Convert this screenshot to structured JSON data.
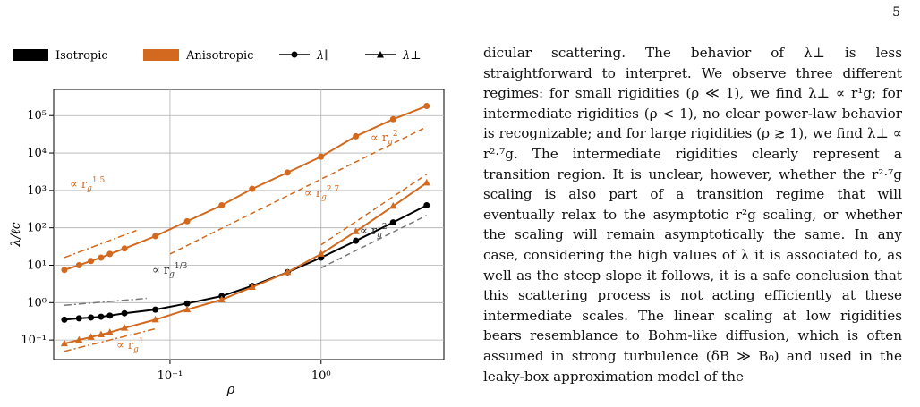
{
  "page": {
    "number": "5"
  },
  "legend": {
    "items": [
      {
        "label": "Isotropic",
        "kind": "patch",
        "color": "#000000"
      },
      {
        "label": "Anisotropic",
        "kind": "patch",
        "color": "#d2691e"
      },
      {
        "label": "λ∥",
        "kind": "circle-line",
        "color": "#000000"
      },
      {
        "label": "λ⊥",
        "kind": "triangle-line",
        "color": "#000000"
      }
    ]
  },
  "colors": {
    "isotropic": "#000000",
    "anisotropic": "#d2691e",
    "ref_gray": "#777777",
    "grid": "#b0b0b0"
  },
  "chart_data": {
    "type": "line",
    "xlabel": "ρ",
    "ylabel": "λ/ℓc",
    "xscale": "log",
    "yscale": "log",
    "xlim": [
      0.017,
      6.5
    ],
    "ylim": [
      0.03,
      500000
    ],
    "grid": true,
    "legend_position": "top, above plot",
    "x_ticks": [
      {
        "value": 0.1,
        "label": "10⁻¹"
      },
      {
        "value": 1,
        "label": "10⁰"
      }
    ],
    "y_ticks": [
      {
        "value": 0.1,
        "label": "10⁻¹"
      },
      {
        "value": 1,
        "label": "10⁰"
      },
      {
        "value": 10,
        "label": "10¹"
      },
      {
        "value": 100,
        "label": "10²"
      },
      {
        "value": 1000,
        "label": "10³"
      },
      {
        "value": 10000,
        "label": "10⁴"
      },
      {
        "value": 100000,
        "label": "10⁵"
      }
    ],
    "series": [
      {
        "name": "Anisotropic λ∥",
        "color": "#d2691e",
        "marker": "circle",
        "x": [
          0.02,
          0.025,
          0.03,
          0.035,
          0.04,
          0.05,
          0.08,
          0.13,
          0.22,
          0.35,
          0.6,
          1.0,
          1.7,
          3.0,
          5.0
        ],
        "y": [
          7.5,
          10,
          13,
          16,
          20,
          28,
          60,
          150,
          400,
          1100,
          3000,
          8000,
          28000,
          80000,
          180000
        ]
      },
      {
        "name": "Isotropic λ⊥",
        "color": "#000000",
        "marker": "circle",
        "x": [
          0.02,
          0.025,
          0.03,
          0.035,
          0.04,
          0.05,
          0.08,
          0.13,
          0.22,
          0.35,
          0.6,
          1.0,
          1.7,
          3.0,
          5.0
        ],
        "y": [
          0.35,
          0.38,
          0.4,
          0.42,
          0.45,
          0.52,
          0.65,
          0.95,
          1.5,
          2.8,
          6.5,
          16,
          45,
          140,
          400
        ]
      },
      {
        "name": "Anisotropic λ⊥",
        "color": "#d2691e",
        "marker": "triangle",
        "x": [
          0.02,
          0.025,
          0.03,
          0.035,
          0.04,
          0.05,
          0.08,
          0.13,
          0.22,
          0.35,
          0.6,
          1.0,
          1.7,
          3.0,
          5.0
        ],
        "y": [
          0.08,
          0.1,
          0.12,
          0.14,
          0.16,
          0.21,
          0.35,
          0.65,
          1.2,
          2.6,
          6.5,
          20,
          80,
          380,
          1600
        ]
      }
    ],
    "reference_lines": [
      {
        "label": "∝ r_g^1.5",
        "color": "#d2691e",
        "style": "dashdot",
        "x": [
          0.02,
          0.06
        ],
        "y": [
          16,
          85
        ]
      },
      {
        "label": "∝ r_g^2",
        "color": "#d2691e",
        "style": "dashed",
        "x": [
          0.1,
          5.0
        ],
        "y": [
          20,
          50000
        ]
      },
      {
        "label": "∝ r_g^1/3",
        "color": "#777777",
        "style": "dashdot",
        "x": [
          0.02,
          0.07
        ],
        "y": [
          0.85,
          1.3
        ]
      },
      {
        "label": "∝ r_g^2.7",
        "color": "#d2691e",
        "style": "dashed",
        "x": [
          1.0,
          5.0
        ],
        "y": [
          35,
          2700
        ]
      },
      {
        "label": "∝ r_g^2",
        "color": "#777777",
        "style": "dashed",
        "x": [
          1.0,
          5.0
        ],
        "y": [
          8.5,
          215
        ]
      },
      {
        "label": "∝ r_g^1",
        "color": "#d2691e",
        "style": "dashdot",
        "x": [
          0.02,
          0.08
        ],
        "y": [
          0.05,
          0.2
        ]
      }
    ],
    "annotations": [
      {
        "base": "∝ r",
        "sub": "g",
        "sup": "1.5",
        "color": "#d2691e"
      },
      {
        "base": "∝ r",
        "sub": "g",
        "sup": "2",
        "color": "#d2691e"
      },
      {
        "base": "∝ r",
        "sub": "g",
        "sup": "2.7",
        "color": "#d2691e"
      },
      {
        "base": "∝ r",
        "sub": "g",
        "sup": "2",
        "color": "#333333"
      },
      {
        "base": "∝ r",
        "sub": "g",
        "sup": "1/3",
        "color": "#333333"
      },
      {
        "base": "∝ r",
        "sub": "g",
        "sup": "1",
        "color": "#d2691e"
      }
    ]
  },
  "text": {
    "paragraph": "dicular scattering. The behavior of λ⊥ is less straightforward to interpret. We observe three different regimes: for small rigidities (ρ ≪ 1), we find λ⊥ ∝ r¹g; for intermediate rigidities (ρ < 1), no clear power-law behavior is recognizable; and for large rigidities (ρ ≳ 1), we find λ⊥ ∝ r²·⁷g. The intermediate rigidities clearly represent a transition region. It is unclear, however, whether the r²·⁷g scaling is also part of a transition regime that will eventually relax to the asymptotic r²g scaling, or whether the scaling will remain asymptotically the same. In any case, considering the high values of λ it is associated to, as well as the steep slope it follows, it is a safe conclusion that this scattering process is not acting efficiently at these intermediate scales. The linear scaling at low rigidities bears resemblance to Bohm-like diffusion, which is often assumed in strong turbulence (δB ≫ B₀) and used in the leaky-box approximation model of the"
  }
}
